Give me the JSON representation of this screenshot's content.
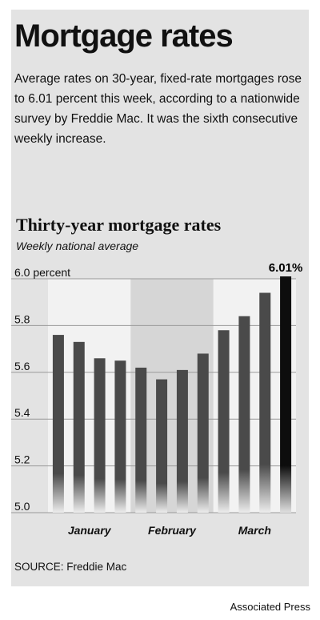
{
  "title": "Mortgage rates",
  "description": "Average rates on 30-year, fixed-rate mortgages rose to 6.01 percent this week, according to a nationwide survey by Freddie Mac. It was the sixth consecutive weekly increase.",
  "source": "SOURCE: Freddie Mac",
  "credit": "Associated Press",
  "chart_data": {
    "type": "bar",
    "title": "Thirty-year mortgage rates",
    "subtitle": "Weekly national average",
    "ylim": [
      5.0,
      6.0
    ],
    "yticks": [
      5.0,
      5.2,
      5.4,
      5.6,
      5.8,
      6.0
    ],
    "ytick_labels": [
      "5.0",
      "5.2",
      "5.4",
      "5.6",
      "5.8",
      "6.0 percent"
    ],
    "values": [
      5.76,
      5.73,
      5.66,
      5.65,
      5.62,
      5.57,
      5.61,
      5.68,
      5.78,
      5.84,
      5.94,
      6.01
    ],
    "highlight_label": "6.01%",
    "months": [
      {
        "label": "January",
        "start": 0,
        "end": 3
      },
      {
        "label": "February",
        "start": 4,
        "end": 7
      },
      {
        "label": "March",
        "start": 8,
        "end": 11
      }
    ],
    "grid": true,
    "colors": {
      "bar": "#4a4a4a",
      "bar_highlight": "#0d0d0d",
      "band_light": "#f2f2f2",
      "band_dark": "#d6d6d6"
    }
  }
}
